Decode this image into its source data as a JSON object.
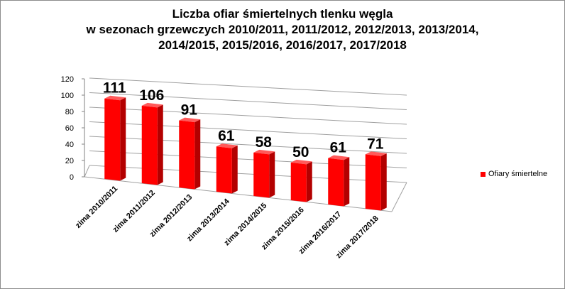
{
  "chart_data": {
    "type": "bar",
    "title_lines": [
      "Liczba ofiar śmiertelnych tlenku węgla",
      "w sezonach grzewczych 2010/2011, 2011/2012, 2012/2013, 2013/2014,",
      "2014/2015, 2015/2016, 2016/2017, 2017/2018"
    ],
    "categories": [
      "zima 2010/2011",
      "zima 2011/2012",
      "zima 2012/2013",
      "zima 2013/2014",
      "zima 2014/2015",
      "zima 2015/2016",
      "zima 2016/2017",
      "zima 2017/2018"
    ],
    "series": [
      {
        "name": "Ofiary śmiertelne",
        "values": [
          111,
          106,
          91,
          61,
          58,
          50,
          61,
          71
        ],
        "color": "#ff0000"
      }
    ],
    "ylim": [
      0,
      120
    ],
    "yticks": [
      0,
      20,
      40,
      60,
      80,
      100,
      120
    ],
    "grid": true,
    "legend_position": "right",
    "style": "3d-column"
  }
}
